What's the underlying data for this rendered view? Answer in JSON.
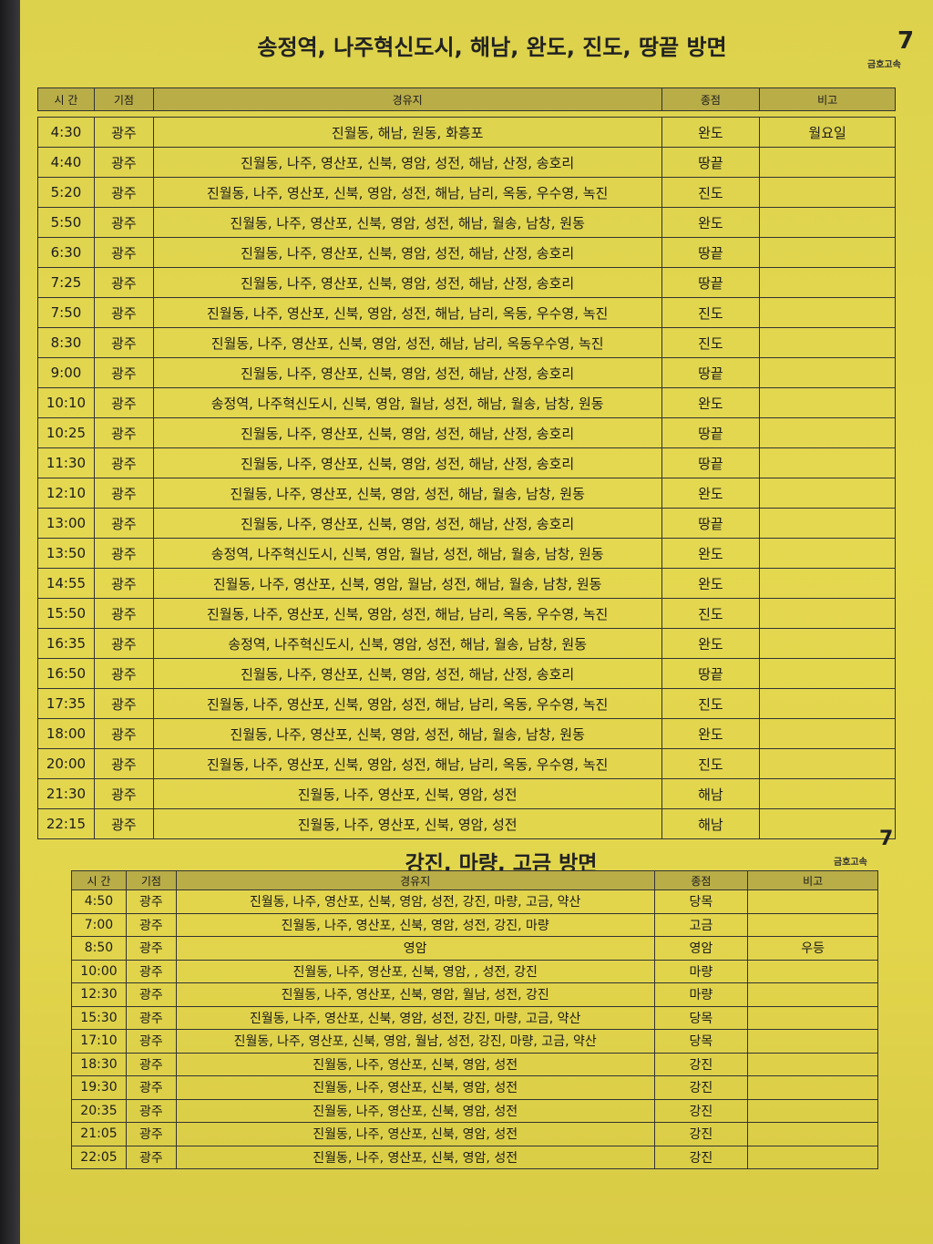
{
  "brand": "금호고속",
  "columns": [
    "시 간",
    "기점",
    "경유지",
    "종점",
    "비고"
  ],
  "section1": {
    "title": "송정역, 나주혁신도시, 해남, 완도, 진도, 땅끝 방면",
    "rows": [
      [
        "4:30",
        "광주",
        "진월동, 해남, 원동, 화흥포",
        "완도",
        "월요일"
      ],
      [
        "4:40",
        "광주",
        "진월동, 나주, 영산포, 신북, 영암, 성전, 해남, 산정, 송호리",
        "땅끝",
        ""
      ],
      [
        "5:20",
        "광주",
        "진월동, 나주, 영산포, 신북, 영암, 성전, 해남, 남리, 옥동, 우수영, 녹진",
        "진도",
        ""
      ],
      [
        "5:50",
        "광주",
        "진월동, 나주, 영산포, 신북, 영암, 성전, 해남, 월송, 남창, 원동",
        "완도",
        ""
      ],
      [
        "6:30",
        "광주",
        "진월동, 나주, 영산포, 신북, 영암, 성전, 해남, 산정, 송호리",
        "땅끝",
        ""
      ],
      [
        "7:25",
        "광주",
        "진월동, 나주, 영산포, 신북, 영암, 성전, 해남, 산정, 송호리",
        "땅끝",
        ""
      ],
      [
        "7:50",
        "광주",
        "진월동, 나주, 영산포, 신북, 영암, 성전, 해남, 남리, 옥동, 우수영, 녹진",
        "진도",
        ""
      ],
      [
        "8:30",
        "광주",
        "진월동, 나주, 영산포, 신북, 영암, 성전, 해남, 남리, 옥동우수영, 녹진",
        "진도",
        ""
      ],
      [
        "9:00",
        "광주",
        "진월동, 나주, 영산포, 신북, 영암, 성전, 해남, 산정, 송호리",
        "땅끝",
        ""
      ],
      [
        "10:10",
        "광주",
        "송정역, 나주혁신도시, 신북, 영암, 월남, 성전, 해남, 월송, 남창, 원동",
        "완도",
        ""
      ],
      [
        "10:25",
        "광주",
        "진월동, 나주, 영산포, 신북, 영암, 성전, 해남, 산정, 송호리",
        "땅끝",
        ""
      ],
      [
        "11:30",
        "광주",
        "진월동, 나주, 영산포, 신북, 영암, 성전, 해남, 산정, 송호리",
        "땅끝",
        ""
      ],
      [
        "12:10",
        "광주",
        "진월동, 나주, 영산포, 신북, 영암, 성전, 해남, 월송, 남창, 원동",
        "완도",
        ""
      ],
      [
        "13:00",
        "광주",
        "진월동, 나주, 영산포, 신북, 영암, 성전, 해남, 산정, 송호리",
        "땅끝",
        ""
      ],
      [
        "13:50",
        "광주",
        "송정역, 나주혁신도시, 신북, 영암, 월남, 성전, 해남, 월송, 남창, 원동",
        "완도",
        ""
      ],
      [
        "14:55",
        "광주",
        "진월동, 나주, 영산포, 신북, 영암, 월남, 성전, 해남, 월송, 남창, 원동",
        "완도",
        ""
      ],
      [
        "15:50",
        "광주",
        "진월동, 나주, 영산포, 신북, 영암, 성전, 해남, 남리, 옥동, 우수영, 녹진",
        "진도",
        ""
      ],
      [
        "16:35",
        "광주",
        "송정역, 나주혁신도시, 신북, 영암, 성전, 해남, 월송, 남창, 원동",
        "완도",
        ""
      ],
      [
        "16:50",
        "광주",
        "진월동, 나주, 영산포, 신북, 영암, 성전, 해남, 산정, 송호리",
        "땅끝",
        ""
      ],
      [
        "17:35",
        "광주",
        "진월동, 나주, 영산포, 신북, 영암, 성전, 해남, 남리, 옥동, 우수영, 녹진",
        "진도",
        ""
      ],
      [
        "18:00",
        "광주",
        "진월동, 나주, 영산포, 신북, 영암, 성전, 해남, 월송, 남창, 원동",
        "완도",
        ""
      ],
      [
        "20:00",
        "광주",
        "진월동, 나주, 영산포, 신북, 영암, 성전, 해남, 남리, 옥동, 우수영, 녹진",
        "진도",
        ""
      ],
      [
        "21:30",
        "광주",
        "진월동, 나주, 영산포, 신북, 영암, 성전",
        "해남",
        ""
      ],
      [
        "22:15",
        "광주",
        "진월동, 나주, 영산포, 신북, 영암, 성전",
        "해남",
        ""
      ]
    ]
  },
  "section2": {
    "title": "강진, 마량, 고금 방면",
    "rows": [
      [
        "4:50",
        "광주",
        "진월동, 나주, 영산포, 신북, 영암, 성전, 강진, 마량, 고금, 약산",
        "당목",
        ""
      ],
      [
        "7:00",
        "광주",
        "진월동, 나주, 영산포, 신북, 영암, 성전, 강진, 마량",
        "고금",
        ""
      ],
      [
        "8:50",
        "광주",
        "영암",
        "영암",
        "우등"
      ],
      [
        "10:00",
        "광주",
        "진월동, 나주, 영산포, 신북, 영암, , 성전, 강진",
        "마량",
        ""
      ],
      [
        "12:30",
        "광주",
        "진월동, 나주, 영산포, 신북, 영암, 월남, 성전, 강진",
        "마량",
        ""
      ],
      [
        "15:30",
        "광주",
        "진월동, 나주, 영산포, 신북, 영암, 성전, 강진, 마량, 고금, 약산",
        "당목",
        ""
      ],
      [
        "17:10",
        "광주",
        "진월동, 나주, 영산포, 신북, 영암, 월남, 성전, 강진, 마량, 고금, 약산",
        "당목",
        ""
      ],
      [
        "18:30",
        "광주",
        "진월동, 나주, 영산포, 신북, 영암, 성전",
        "강진",
        ""
      ],
      [
        "19:30",
        "광주",
        "진월동, 나주, 영산포, 신북, 영암, 성전",
        "강진",
        ""
      ],
      [
        "20:35",
        "광주",
        "진월동, 나주, 영산포, 신북, 영암, 성전",
        "강진",
        ""
      ],
      [
        "21:05",
        "광주",
        "진월동, 나주, 영산포, 신북, 영암, 성전",
        "강진",
        ""
      ],
      [
        "22:05",
        "광주",
        "진월동, 나주, 영산포, 신북, 영암, 성전",
        "강진",
        ""
      ]
    ]
  }
}
